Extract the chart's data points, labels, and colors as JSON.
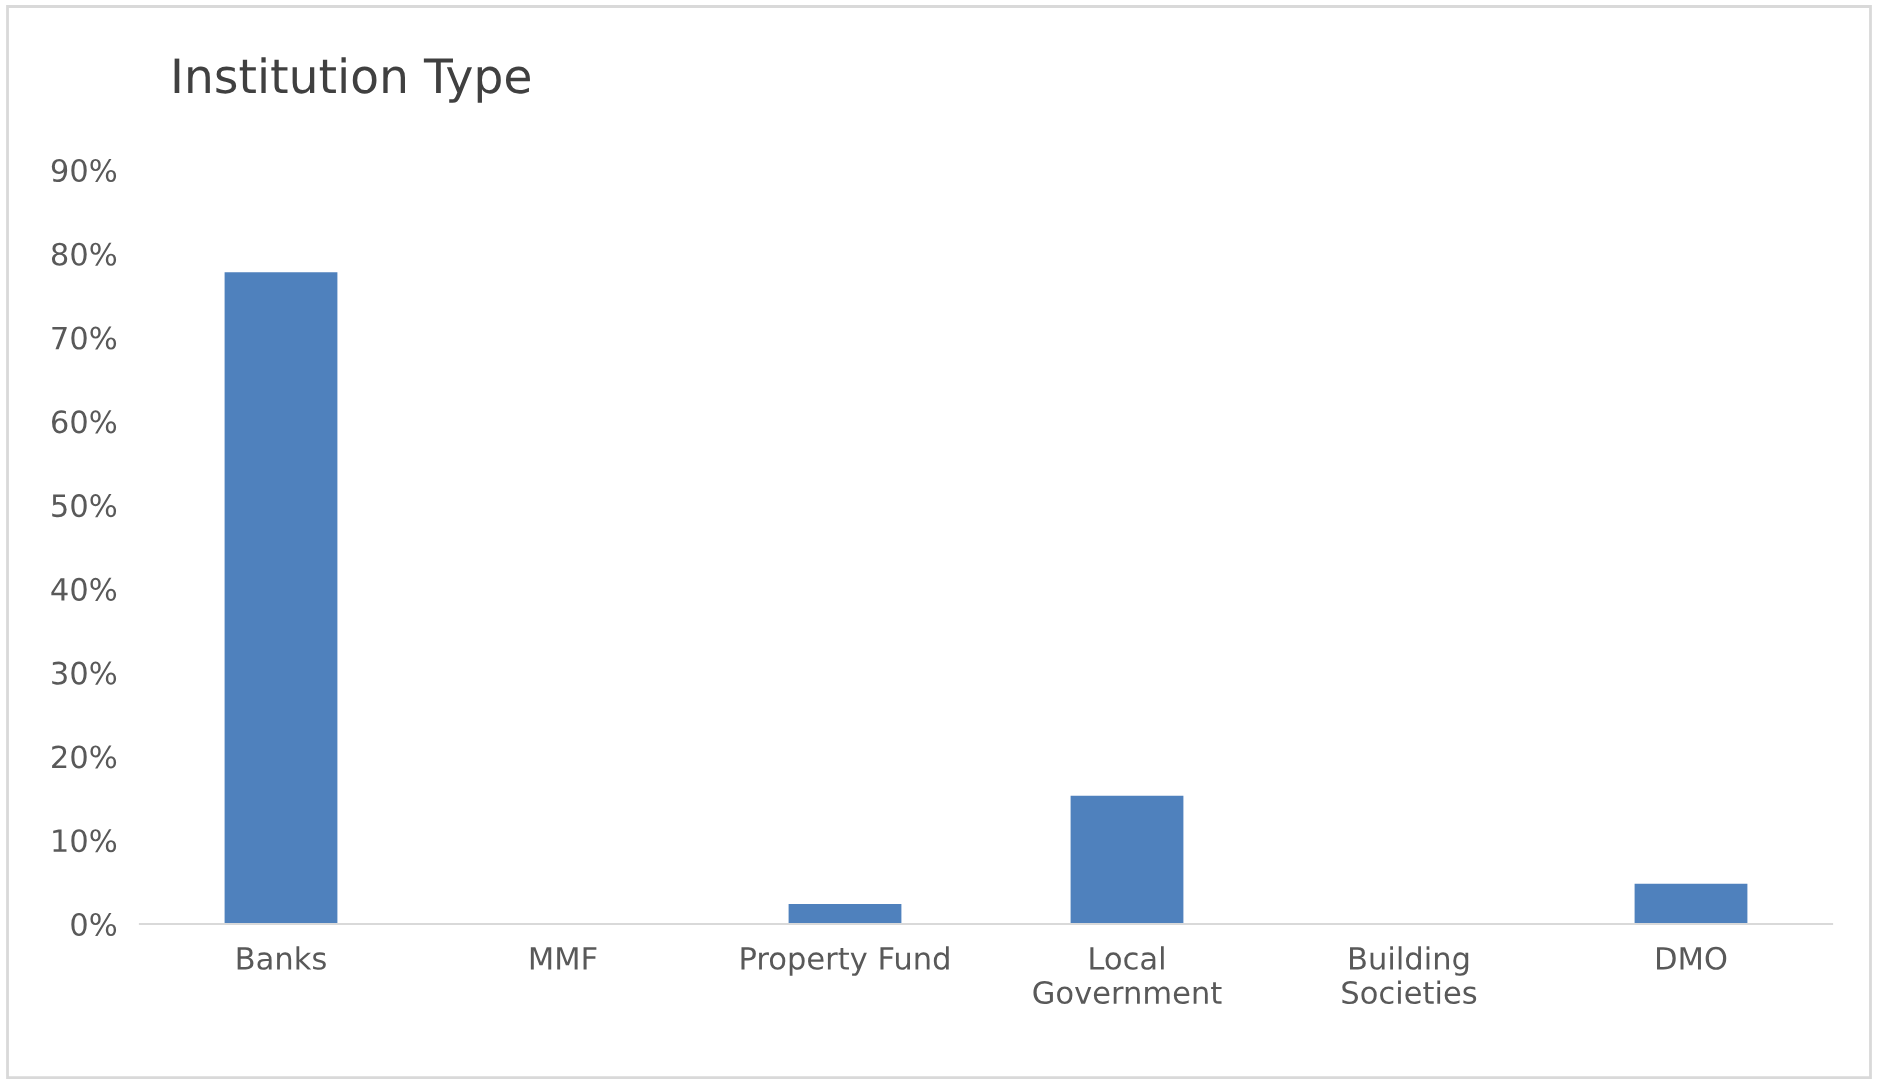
{
  "chart_data": {
    "type": "bar",
    "title": "Institution Type",
    "categories": [
      "Banks",
      "MMF",
      "Property Fund",
      "Local\nGovernment",
      "Building\nSocieties",
      "DMO"
    ],
    "values": [
      77.8,
      0,
      2.4,
      15.3,
      0,
      4.8
    ],
    "color": "#4f81bd",
    "ylim": [
      0,
      90
    ],
    "yticks": [
      {
        "value": 0,
        "label": "0%"
      },
      {
        "value": 10,
        "label": "10%"
      },
      {
        "value": 20,
        "label": "20%"
      },
      {
        "value": 30,
        "label": "30%"
      },
      {
        "value": 40,
        "label": "40%"
      },
      {
        "value": 50,
        "label": "50%"
      },
      {
        "value": 60,
        "label": "60%"
      },
      {
        "value": 70,
        "label": "70%"
      },
      {
        "value": 80,
        "label": "80%"
      },
      {
        "value": 90,
        "label": "90%"
      }
    ],
    "grid": false,
    "legend": false
  }
}
